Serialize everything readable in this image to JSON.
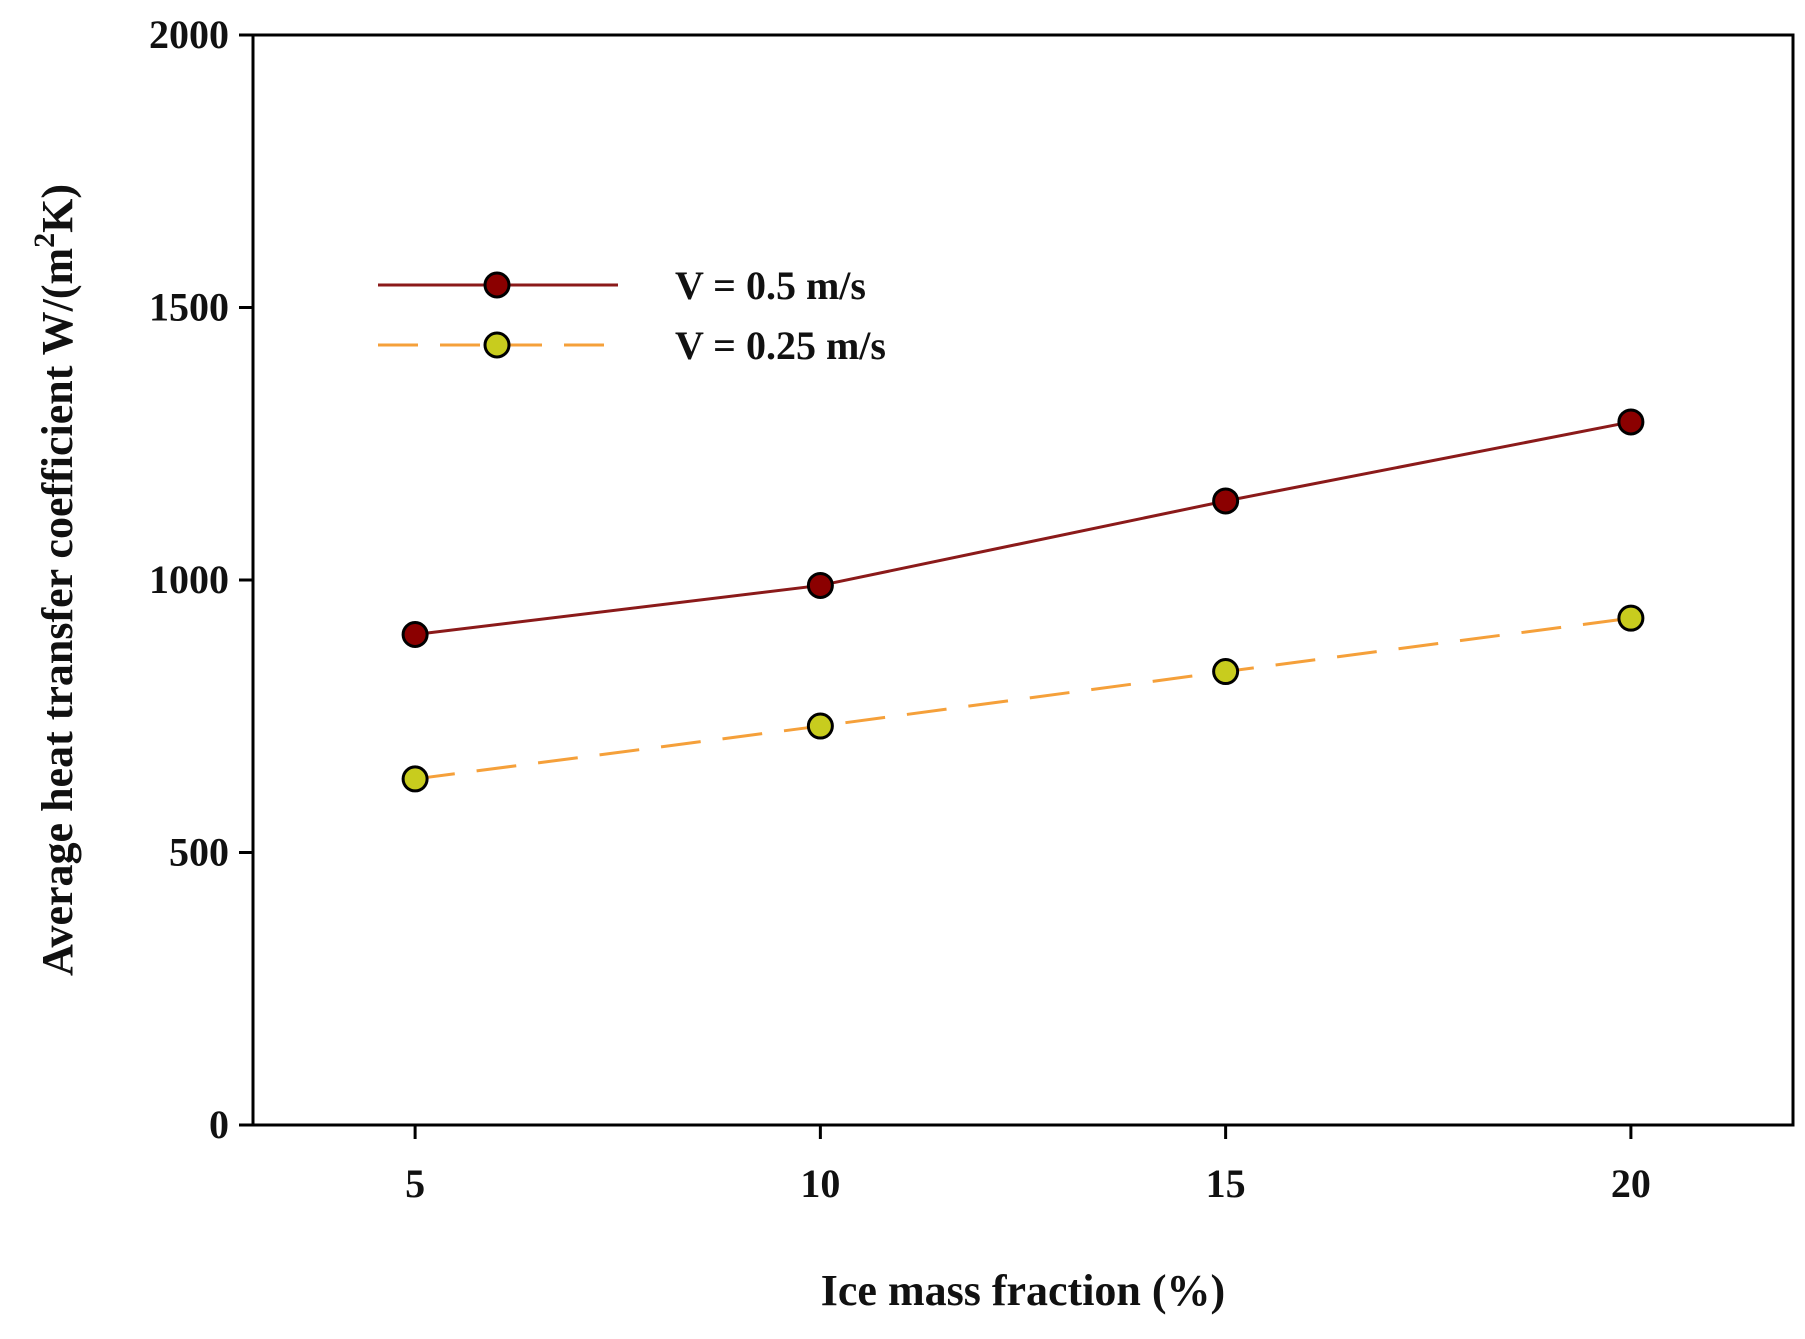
{
  "chart_data": {
    "type": "line",
    "title": "",
    "xlabel": "Ice mass fraction (%)",
    "ylabel": {
      "main": "Average heat transfer coefficient W/(m",
      "superscript": "2",
      "end": "K)"
    },
    "xlim": [
      3,
      22
    ],
    "ylim": [
      0,
      2000
    ],
    "x": [
      5,
      10,
      15,
      20
    ],
    "x_ticks": [
      5,
      10,
      15,
      20
    ],
    "y_ticks": [
      0,
      500,
      1000,
      1500,
      2000
    ],
    "grid": false,
    "legend_position": "upper-left",
    "series": [
      {
        "name": "V = 0.5 m/s",
        "values": [
          900,
          990,
          1145,
          1290
        ],
        "line_color": "#8b1a1a",
        "marker_fill": "#8b0000",
        "line_style": "solid"
      },
      {
        "name": "V = 0.25 m/s",
        "values": [
          635,
          732,
          832,
          930
        ],
        "line_color": "#f5a03a",
        "marker_fill": "#c8cc1e",
        "line_style": "dashed"
      }
    ]
  }
}
